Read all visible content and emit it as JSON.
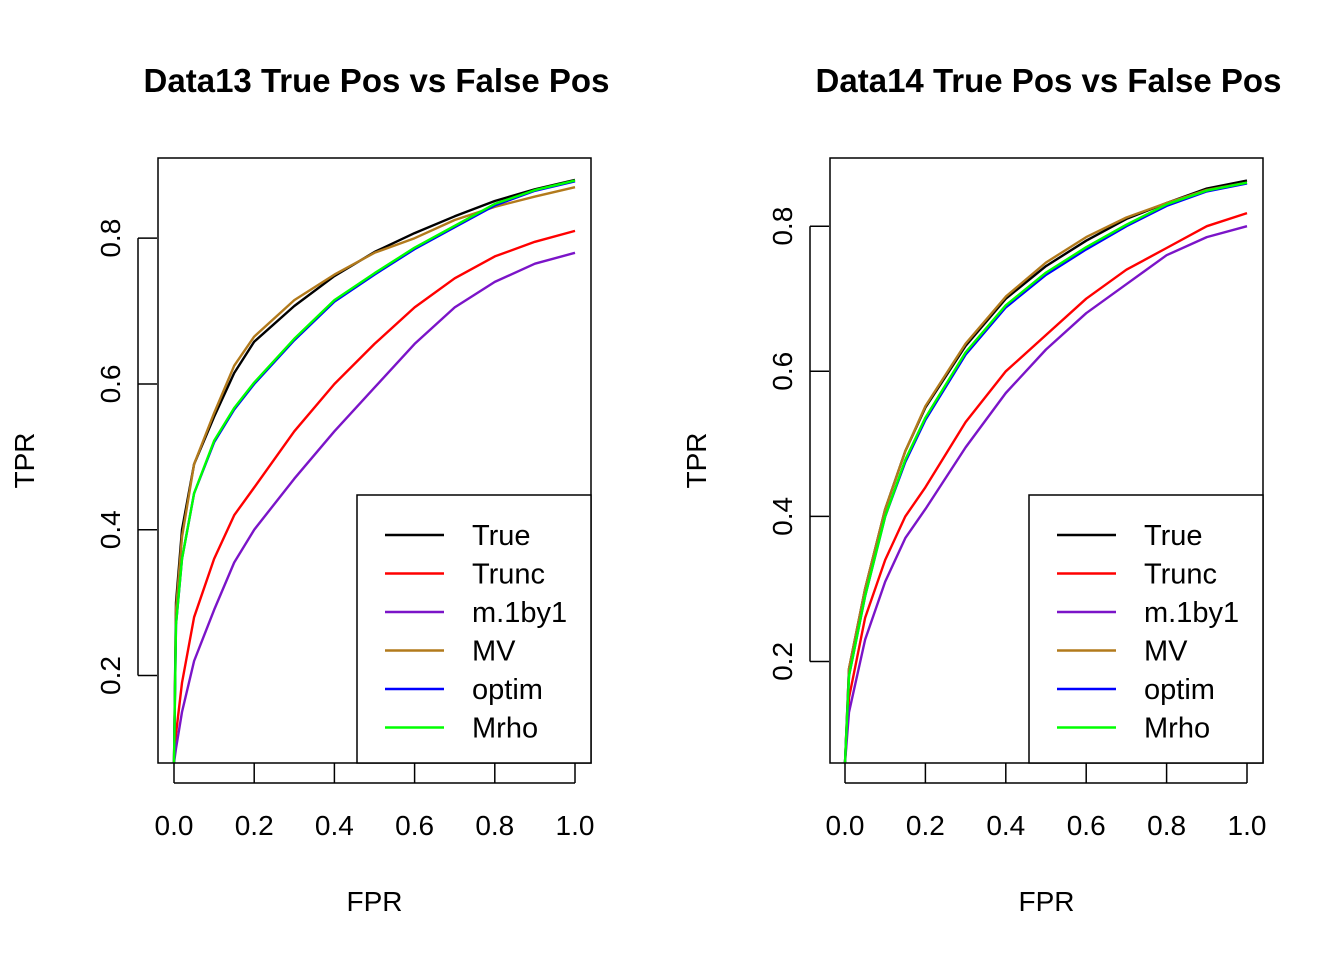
{
  "chart_data": [
    {
      "type": "line",
      "title": "Data13 True Pos vs False Pos",
      "xlabel": "FPR",
      "ylabel": "TPR",
      "xlim": [
        0,
        1
      ],
      "ylim": [
        0.08,
        0.91
      ],
      "xticks": [
        "0.0",
        "0.2",
        "0.4",
        "0.6",
        "0.8",
        "1.0"
      ],
      "yticks": [
        "0.2",
        "0.4",
        "0.6",
        "0.8"
      ],
      "legend_position": "bottom-right",
      "x": [
        0,
        0.005,
        0.02,
        0.05,
        0.1,
        0.15,
        0.2,
        0.3,
        0.4,
        0.5,
        0.6,
        0.7,
        0.8,
        0.9,
        1.0
      ],
      "series": [
        {
          "name": "True",
          "color": "#000000",
          "values": [
            0.08,
            0.3,
            0.4,
            0.49,
            0.555,
            0.615,
            0.658,
            0.707,
            0.748,
            0.781,
            0.807,
            0.83,
            0.851,
            0.867,
            0.88
          ]
        },
        {
          "name": "Trunc",
          "color": "#ff0000",
          "values": [
            0.08,
            0.12,
            0.19,
            0.28,
            0.36,
            0.42,
            0.458,
            0.535,
            0.6,
            0.655,
            0.705,
            0.745,
            0.775,
            0.795,
            0.81
          ]
        },
        {
          "name": "m.1by1",
          "color": "#7b14c8",
          "values": [
            0.08,
            0.1,
            0.15,
            0.22,
            0.29,
            0.355,
            0.4,
            0.47,
            0.535,
            0.595,
            0.655,
            0.705,
            0.74,
            0.765,
            0.78
          ]
        },
        {
          "name": "MV",
          "color": "#b27a1c",
          "values": [
            0.08,
            0.29,
            0.39,
            0.49,
            0.56,
            0.625,
            0.665,
            0.715,
            0.75,
            0.78,
            0.8,
            0.825,
            0.843,
            0.857,
            0.87
          ]
        },
        {
          "name": "optim",
          "color": "#0000ff",
          "values": [
            0.08,
            0.27,
            0.36,
            0.45,
            0.52,
            0.565,
            0.6,
            0.66,
            0.713,
            0.75,
            0.785,
            0.815,
            0.845,
            0.865,
            0.878
          ]
        },
        {
          "name": "Mrho",
          "color": "#00ff00",
          "values": [
            0.08,
            0.27,
            0.36,
            0.45,
            0.522,
            0.567,
            0.602,
            0.662,
            0.715,
            0.752,
            0.787,
            0.817,
            0.847,
            0.866,
            0.879
          ]
        }
      ]
    },
    {
      "type": "line",
      "title": "Data14 True Pos vs False Pos",
      "xlabel": "FPR",
      "ylabel": "TPR",
      "xlim": [
        0,
        1
      ],
      "ylim": [
        0.06,
        0.894
      ],
      "xticks": [
        "0.0",
        "0.2",
        "0.4",
        "0.6",
        "0.8",
        "1.0"
      ],
      "yticks": [
        "0.2",
        "0.4",
        "0.6",
        "0.8"
      ],
      "legend_position": "bottom-right",
      "x": [
        0,
        0.01,
        0.05,
        0.1,
        0.15,
        0.2,
        0.3,
        0.4,
        0.5,
        0.6,
        0.7,
        0.8,
        0.9,
        1.0
      ],
      "series": [
        {
          "name": "True",
          "color": "#000000",
          "values": [
            0.06,
            0.19,
            0.3,
            0.41,
            0.49,
            0.55,
            0.635,
            0.7,
            0.745,
            0.78,
            0.81,
            0.832,
            0.852,
            0.863
          ]
        },
        {
          "name": "Trunc",
          "color": "#ff0000",
          "values": [
            0.06,
            0.15,
            0.26,
            0.34,
            0.4,
            0.44,
            0.53,
            0.6,
            0.65,
            0.7,
            0.74,
            0.77,
            0.8,
            0.818
          ]
        },
        {
          "name": "m.1by1",
          "color": "#7b14c8",
          "values": [
            0.06,
            0.13,
            0.23,
            0.31,
            0.37,
            0.41,
            0.495,
            0.57,
            0.63,
            0.68,
            0.72,
            0.76,
            0.785,
            0.8
          ]
        },
        {
          "name": "MV",
          "color": "#b27a1c",
          "values": [
            0.06,
            0.19,
            0.3,
            0.41,
            0.49,
            0.552,
            0.638,
            0.703,
            0.75,
            0.785,
            0.812,
            0.832,
            0.85,
            0.86
          ]
        },
        {
          "name": "optim",
          "color": "#0000ff",
          "values": [
            0.06,
            0.18,
            0.29,
            0.4,
            0.475,
            0.533,
            0.623,
            0.688,
            0.733,
            0.768,
            0.8,
            0.828,
            0.848,
            0.859
          ]
        },
        {
          "name": "Mrho",
          "color": "#00ff00",
          "values": [
            0.06,
            0.18,
            0.29,
            0.4,
            0.478,
            0.536,
            0.626,
            0.691,
            0.736,
            0.771,
            0.802,
            0.83,
            0.849,
            0.86
          ]
        }
      ]
    }
  ]
}
